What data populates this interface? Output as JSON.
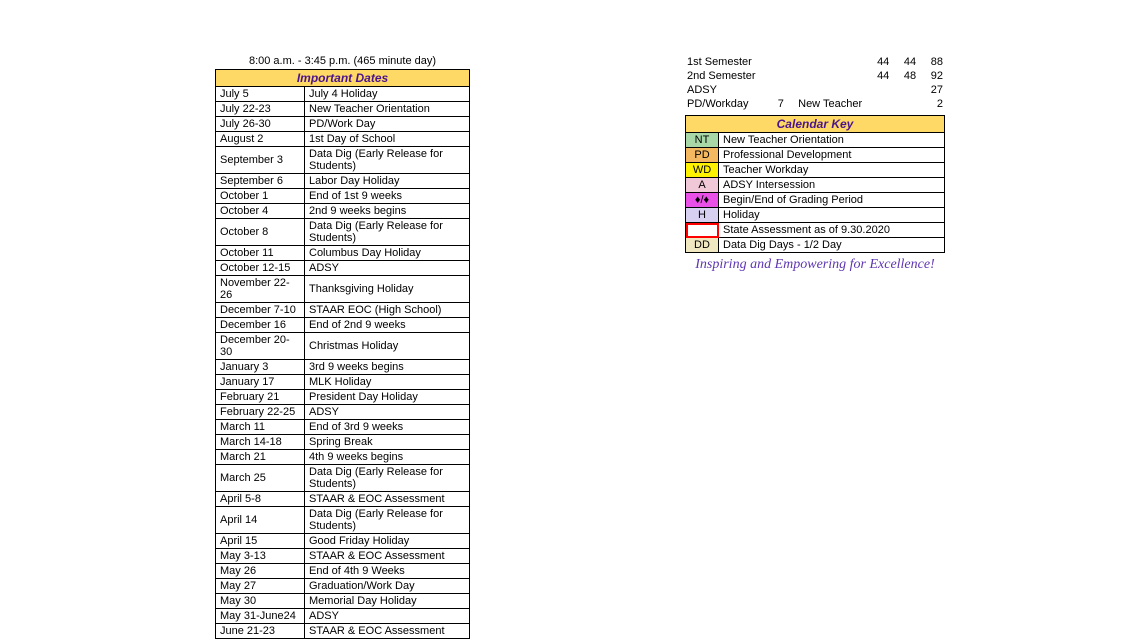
{
  "schedule_time": "8:00 a.m. - 3:45 p.m. (465 minute day)",
  "important_dates": {
    "header": "Important Dates",
    "header_bg": "#ffd966",
    "header_color": "#4a148c",
    "rows": [
      {
        "date": "July 5",
        "event": "July 4 Holiday"
      },
      {
        "date": "July 22-23",
        "event": "New Teacher Orientation"
      },
      {
        "date": "July 26-30",
        "event": "PD/Work Day"
      },
      {
        "date": "August 2",
        "event": "1st Day of School"
      },
      {
        "date": "September 3",
        "event": "Data Dig (Early Release for Students)"
      },
      {
        "date": "September 6",
        "event": "Labor Day Holiday"
      },
      {
        "date": "October 1",
        "event": "End of 1st 9 weeks"
      },
      {
        "date": "October 4",
        "event": "2nd 9 weeks begins"
      },
      {
        "date": "October 8",
        "event": "Data Dig (Early Release for Students)"
      },
      {
        "date": "October 11",
        "event": "Columbus Day Holiday"
      },
      {
        "date": "October 12-15",
        "event": "ADSY"
      },
      {
        "date": "November 22-26",
        "event": "Thanksgiving Holiday"
      },
      {
        "date": "December 7-10",
        "event": "STAAR EOC (High School)"
      },
      {
        "date": "December 16",
        "event": "End of 2nd 9 weeks"
      },
      {
        "date": "December 20-30",
        "event": "Christmas Holiday"
      },
      {
        "date": "January 3",
        "event": "3rd 9 weeks begins"
      },
      {
        "date": "January 17",
        "event": "MLK Holiday"
      },
      {
        "date": "February 21",
        "event": "President Day Holiday"
      },
      {
        "date": "February 22-25",
        "event": "ADSY"
      },
      {
        "date": "March 11",
        "event": "End of 3rd 9 weeks"
      },
      {
        "date": "March 14-18",
        "event": "Spring Break"
      },
      {
        "date": "March 21",
        "event": "4th 9 weeks begins"
      },
      {
        "date": "March 25",
        "event": "Data Dig (Early Release for Students)"
      },
      {
        "date": "April 5-8",
        "event": "STAAR & EOC Assessment"
      },
      {
        "date": "April 14",
        "event": "Data Dig (Early Release for Students)"
      },
      {
        "date": "April 15",
        "event": "Good Friday Holiday"
      },
      {
        "date": "May 3-13",
        "event": "STAAR & EOC Assessment"
      },
      {
        "date": "May 26",
        "event": "End of 4th 9 Weeks"
      },
      {
        "date": "May 27",
        "event": "Graduation/Work Day"
      },
      {
        "date": "May 30",
        "event": "Memorial Day Holiday"
      },
      {
        "date": "May 31-June24",
        "event": "ADSY"
      },
      {
        "date": "June 21-23",
        "event": "STAAR & EOC Assessment"
      }
    ]
  },
  "stats": {
    "rows": [
      {
        "label": "1st Semester",
        "c1": "",
        "c2": "",
        "c3": "44",
        "c4": "44",
        "c5": "88"
      },
      {
        "label": "2nd Semester",
        "c1": "",
        "c2": "",
        "c3": "44",
        "c4": "48",
        "c5": "92"
      },
      {
        "label": "ADSY",
        "c1": "",
        "c2": "",
        "c3": "",
        "c4": "",
        "c5": "27"
      },
      {
        "label": "PD/Workday",
        "c1": "7",
        "c2": "New Teacher",
        "c3": "",
        "c4": "",
        "c5": "2"
      }
    ]
  },
  "key": {
    "header": "Calendar Key",
    "header_bg": "#ffd966",
    "header_color": "#4a148c",
    "rows": [
      {
        "code": "NT",
        "bg": "#a8d8a8",
        "label": "New Teacher Orientation"
      },
      {
        "code": "PD",
        "bg": "#f4b860",
        "label": "Professional Development"
      },
      {
        "code": "WD",
        "bg": "#fff200",
        "label": "Teacher Workday"
      },
      {
        "code": "A",
        "bg": "#f0c8d8",
        "label": "ADSY Intersession"
      },
      {
        "code": "♦/♦",
        "bg": "#e850e8",
        "label": "Begin/End of Grading Period"
      },
      {
        "code": "H",
        "bg": "#d8d0f0",
        "label": "Holiday"
      },
      {
        "code": "",
        "bg": "#ffffff",
        "border": "2px solid #ff0000",
        "label": "State Assessment as of 9.30.2020"
      },
      {
        "code": "DD",
        "bg": "#f0e8c0",
        "label": "Data Dig Days - 1/2 Day"
      }
    ]
  },
  "tagline": "Inspiring and Empowering for Excellence!"
}
